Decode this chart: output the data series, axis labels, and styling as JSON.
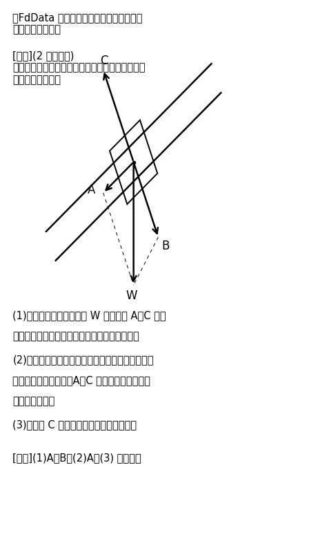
{
  "title_line1": "』FdData 中間期末：中学理科３年：力』",
  "title_line2": "［斜面上の物体］",
  "problem_header": "[問題](2 学期期末)",
  "problem_text1": "　次の図は，摩擦のない斜面上の物体にはたらく",
  "problem_text2": "力を示している。",
  "q1": "(1)　物体にはたらく重力 W の分力は A～C のう",
  "q1b": "　　ちのどれか。すべて選んで記号で答えよ。",
  "q2": "(2)　斜面の角度が大きくなると，大きさが大きく",
  "q2b": "　　なる力はどれか。A～C から１つ選んで記号",
  "q2c": "　　で答えよ。",
  "q3": "(3)　図の C で示される力を何というか。",
  "answer": "[解答](1)A，B　(2)A　(3) 垂直抗力",
  "bg_color": "#ffffff",
  "text_color": "#000000"
}
